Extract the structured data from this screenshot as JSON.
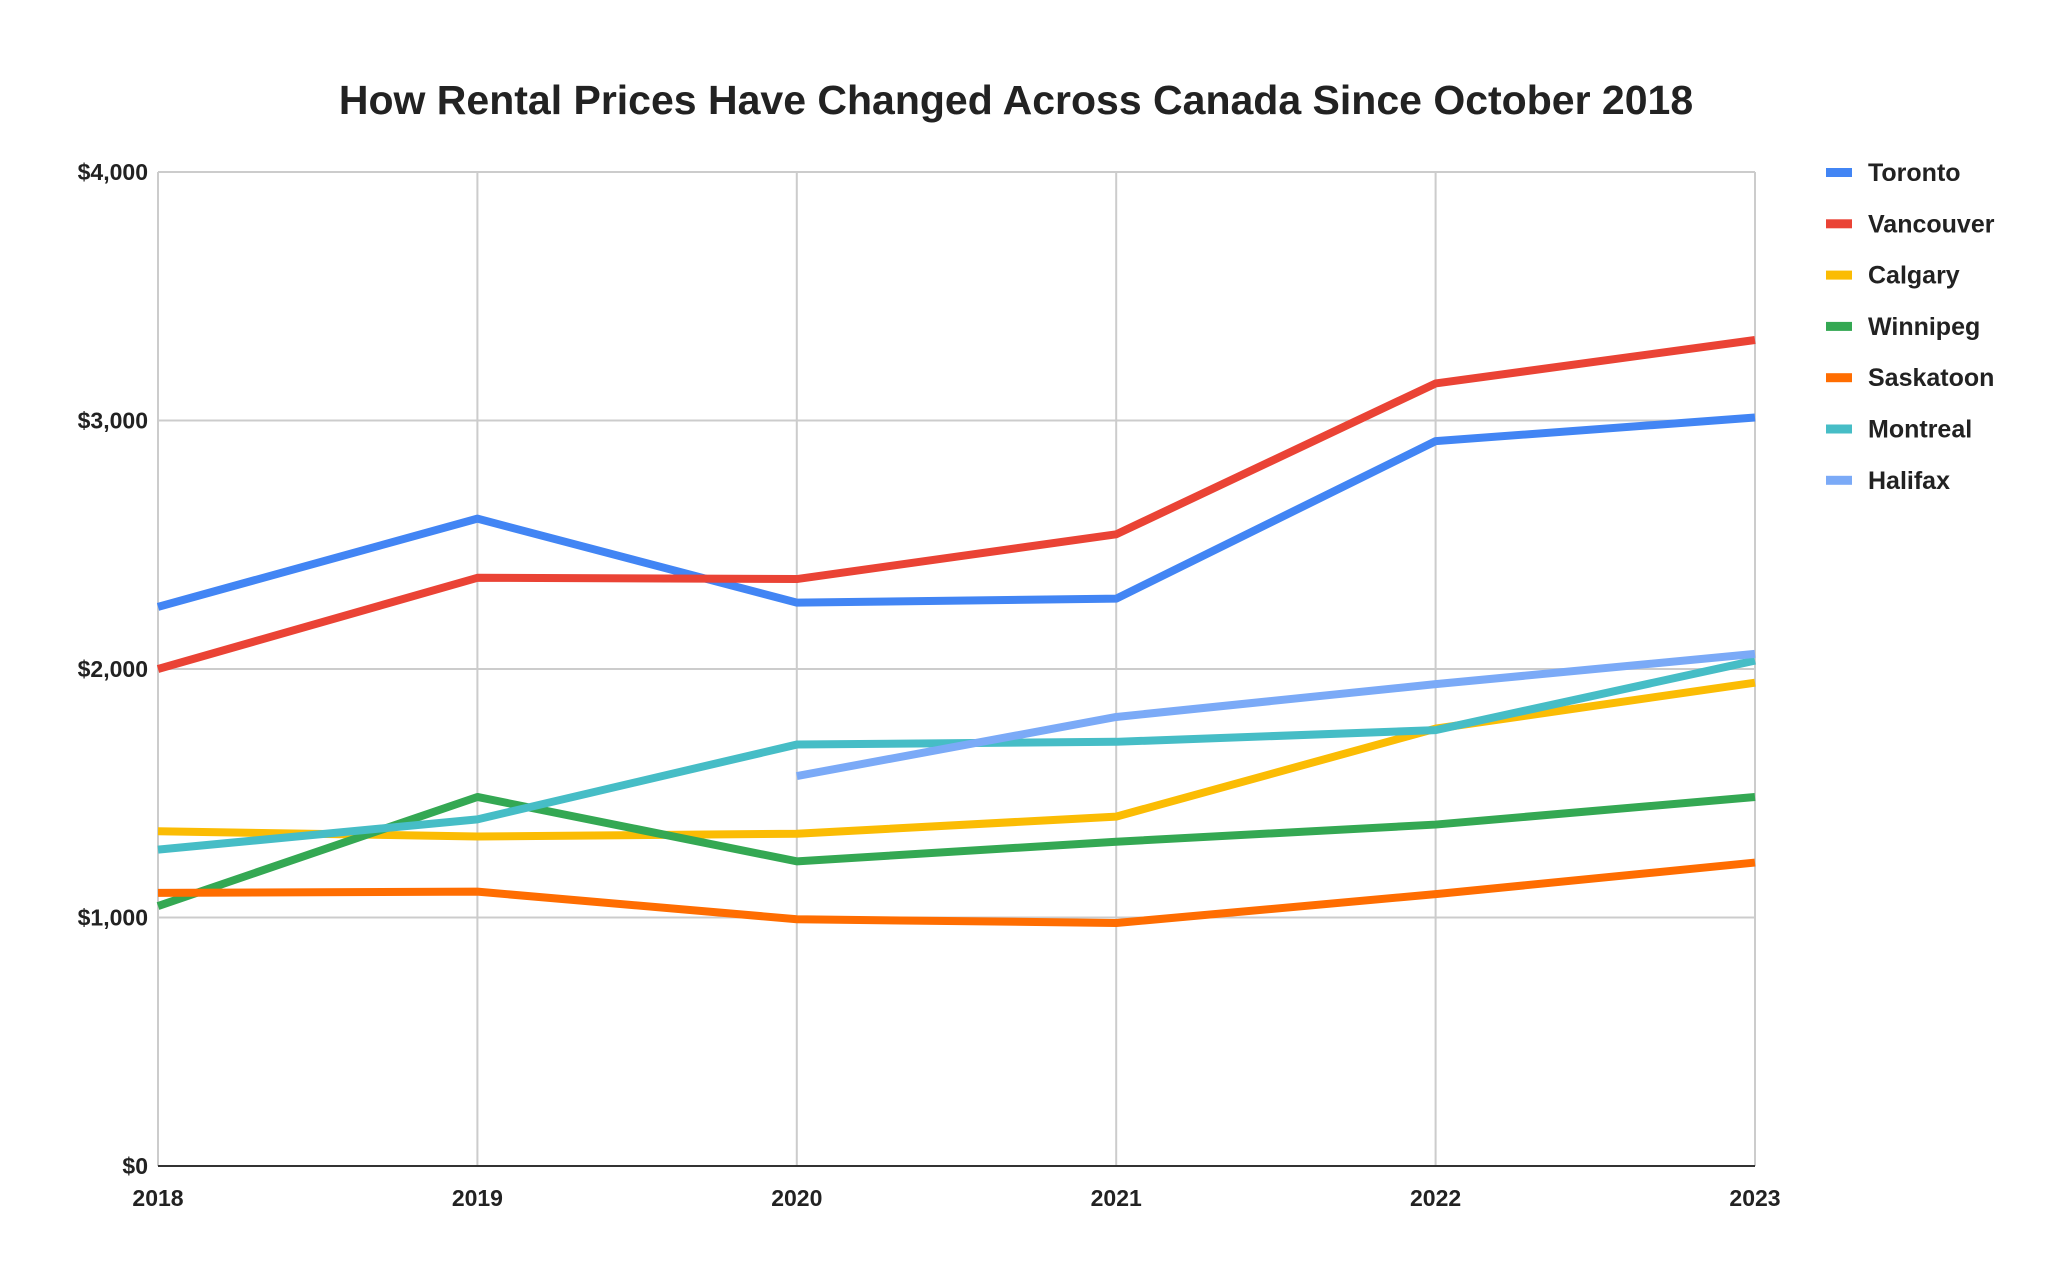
{
  "chart_data": {
    "type": "line",
    "title": "How Rental Prices Have Changed Across Canada Since October 2018",
    "xlabel": "",
    "ylabel": "",
    "categories": [
      "2018",
      "2019",
      "2020",
      "2021",
      "2022",
      "2023"
    ],
    "ylim": [
      0,
      4000
    ],
    "yticks": [
      0,
      1000,
      2000,
      3000,
      4000
    ],
    "ytick_labels": [
      "$0",
      "$1,000",
      "$2,000",
      "$3,000",
      "$4,000"
    ],
    "grid": true,
    "legend_position": "right",
    "series": [
      {
        "name": "Toronto",
        "color": "#4285f4",
        "values": [
          2250,
          2605,
          2267,
          2283,
          2917,
          3012
        ]
      },
      {
        "name": "Vancouver",
        "color": "#ea4335",
        "values": [
          2000,
          2367,
          2362,
          2542,
          3149,
          3324
        ]
      },
      {
        "name": "Calgary",
        "color": "#fbbc04",
        "values": [
          1347,
          1326,
          1337,
          1406,
          1760,
          1945
        ]
      },
      {
        "name": "Winnipeg",
        "color": "#34a853",
        "values": [
          1046,
          1485,
          1226,
          1305,
          1374,
          1485
        ]
      },
      {
        "name": "Saskatoon",
        "color": "#ff6d01",
        "values": [
          1099,
          1104,
          993,
          978,
          1094,
          1221
        ]
      },
      {
        "name": "Montreal",
        "color": "#46bdc6",
        "values": [
          1273,
          1395,
          1696,
          1707,
          1754,
          2034
        ]
      },
      {
        "name": "Halifax",
        "color": "#7baaf7",
        "values": [
          null,
          null,
          1569,
          1807,
          1939,
          2061
        ]
      }
    ]
  }
}
